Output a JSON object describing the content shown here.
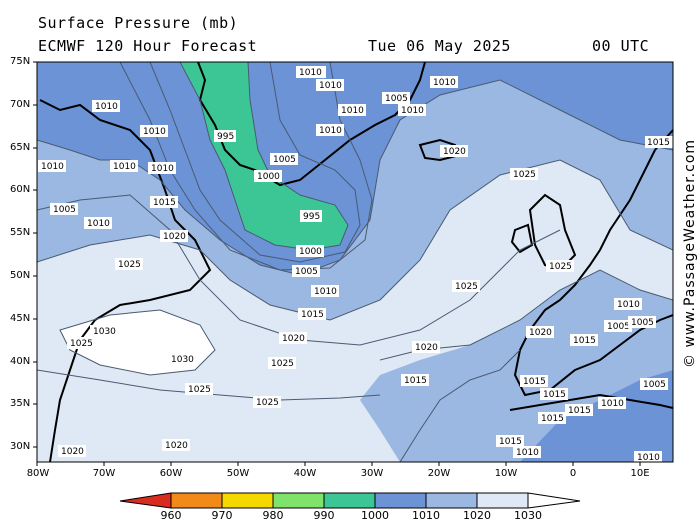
{
  "header": {
    "title": "Surface Pressure (mb)",
    "model": "ECMWF 120 Hour Forecast",
    "date": "Tue 06 May 2025",
    "time": "00 UTC"
  },
  "map": {
    "lat_labels": [
      "75N",
      "70N",
      "65N",
      "60N",
      "55N",
      "50N",
      "45N",
      "40N",
      "35N",
      "30N"
    ],
    "lon_labels": [
      "80W",
      "70W",
      "60W",
      "50W",
      "40W",
      "30W",
      "20W",
      "10W",
      "0",
      "10E"
    ],
    "isobars": [
      {
        "value": "1005",
        "label": "1005"
      },
      {
        "value": "1010",
        "label": "1010"
      },
      {
        "value": "1015",
        "label": "1015"
      },
      {
        "value": "1020",
        "label": "1020"
      },
      {
        "value": "1025",
        "label": "1025"
      },
      {
        "value": "1030",
        "label": "1030"
      },
      {
        "value": "1000",
        "label": "1000"
      },
      {
        "value": "995",
        "label": "995"
      }
    ]
  },
  "legend": {
    "labels": [
      "960",
      "970",
      "980",
      "990",
      "1000",
      "1010",
      "1020",
      "1030"
    ],
    "colors": [
      "#d82c20",
      "#f28a1a",
      "#f5d800",
      "#7fe26a",
      "#3cc695",
      "#6b93d6",
      "#9ab8e2",
      "#dfe8f5"
    ]
  },
  "watermark": "© www.PassageWeather.com",
  "colors": {
    "low": "#3cc695",
    "mid": "#6b93d6",
    "med": "#9ab8e2",
    "high": "#dfe8f5",
    "highest": "#ffffff"
  }
}
